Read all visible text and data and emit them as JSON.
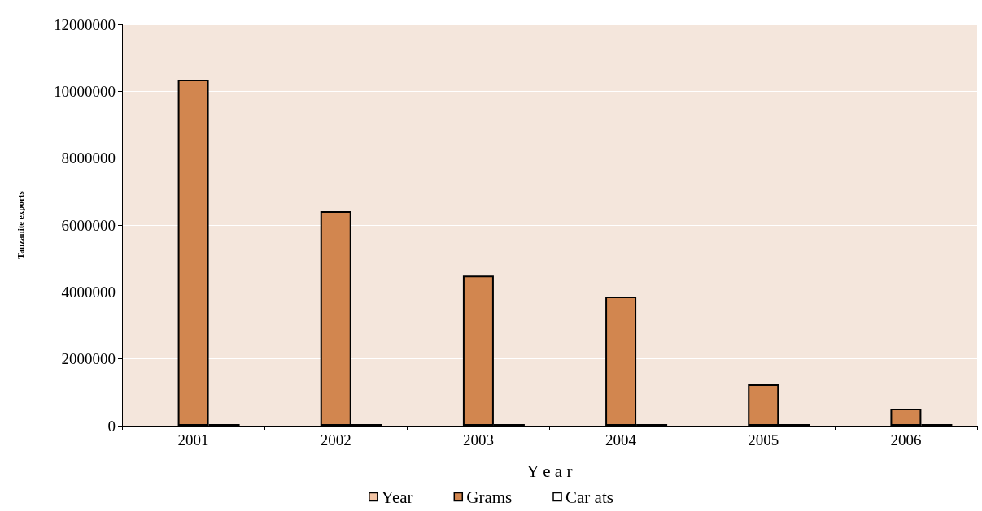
{
  "chart_data": {
    "type": "bar",
    "xlabel": "Y e a r",
    "ylabel": "Tanzanite exports",
    "categories": [
      "2001",
      "2002",
      "2003",
      "2004",
      "2005",
      "2006"
    ],
    "series": [
      {
        "name": "Year",
        "color": "#f2c4a4",
        "values": [
          null,
          null,
          null,
          null,
          null,
          null
        ]
      },
      {
        "name": "Grams",
        "color": "#d2864f",
        "values": [
          10350000,
          6410000,
          4490000,
          3860000,
          1240000,
          510000
        ]
      },
      {
        "name": "Car ats",
        "color": "#ffffff",
        "values": [
          50000,
          50000,
          50000,
          50000,
          50000,
          50000
        ]
      }
    ],
    "ylim": [
      0,
      12000000
    ],
    "yticks": [
      0,
      2000000,
      4000000,
      6000000,
      8000000,
      10000000,
      12000000
    ],
    "grid": "y",
    "legend": "bottom"
  }
}
